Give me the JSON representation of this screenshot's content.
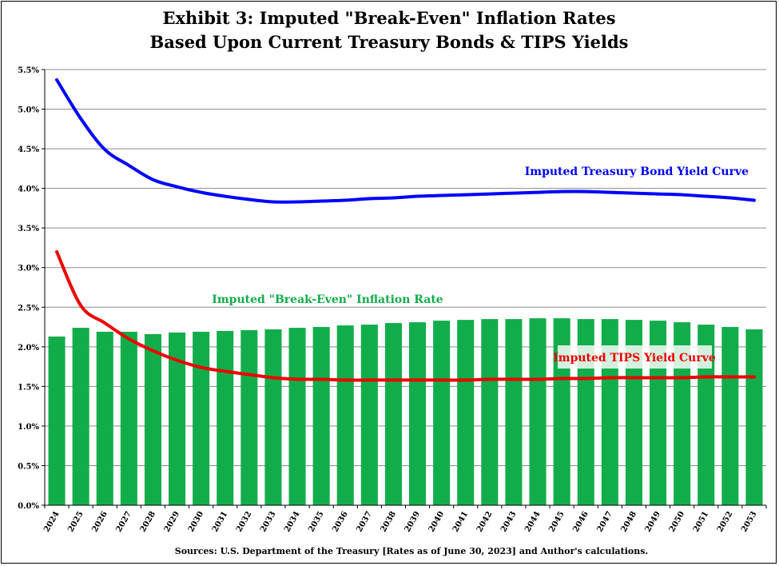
{
  "chart_data": {
    "type": "bar",
    "title_line1": "Exhibit 3: Imputed \"Break-Even\" Inflation Rates",
    "title_line2": "Based Upon Current Treasury Bonds & TIPS Yields",
    "source": "Sources: U.S. Department of the Treasury [Rates as of June 30, 2023] and Author's calculations.",
    "categories": [
      "2024",
      "2025",
      "2026",
      "2027",
      "2028",
      "2029",
      "2030",
      "2031",
      "2032",
      "2033",
      "2034",
      "2035",
      "2036",
      "2037",
      "2038",
      "2039",
      "2040",
      "2041",
      "2042",
      "2043",
      "2044",
      "2045",
      "2046",
      "2047",
      "2048",
      "2049",
      "2050",
      "2051",
      "2052",
      "2053"
    ],
    "ylim": [
      0,
      5.5
    ],
    "yticks": [
      "0.0%",
      "0.5%",
      "1.0%",
      "1.5%",
      "2.0%",
      "2.5%",
      "3.0%",
      "3.5%",
      "4.0%",
      "4.5%",
      "5.0%",
      "5.5%"
    ],
    "grid": true,
    "series": [
      {
        "name": "Imputed \"Break-Even\" Inflation Rate",
        "kind": "bar",
        "color": "#12AD4B",
        "values": [
          2.13,
          2.24,
          2.19,
          2.19,
          2.16,
          2.18,
          2.19,
          2.2,
          2.21,
          2.22,
          2.24,
          2.25,
          2.27,
          2.28,
          2.3,
          2.31,
          2.33,
          2.34,
          2.35,
          2.35,
          2.36,
          2.36,
          2.35,
          2.35,
          2.34,
          2.33,
          2.31,
          2.28,
          2.25,
          2.22
        ]
      },
      {
        "name": "Imputed Treasury Bond Yield Curve",
        "kind": "line",
        "color": "#0000FF",
        "values": [
          5.37,
          4.88,
          4.49,
          4.29,
          4.11,
          4.02,
          3.95,
          3.9,
          3.86,
          3.83,
          3.83,
          3.84,
          3.85,
          3.87,
          3.88,
          3.9,
          3.91,
          3.92,
          3.93,
          3.94,
          3.95,
          3.96,
          3.96,
          3.95,
          3.94,
          3.93,
          3.92,
          3.9,
          3.88,
          3.85
        ]
      },
      {
        "name": "Imputed TIPS Yield Curve",
        "kind": "line",
        "color": "#EE0000",
        "values": [
          3.2,
          2.52,
          2.3,
          2.1,
          1.95,
          1.83,
          1.74,
          1.69,
          1.65,
          1.61,
          1.59,
          1.59,
          1.58,
          1.58,
          1.58,
          1.58,
          1.58,
          1.58,
          1.59,
          1.59,
          1.59,
          1.6,
          1.6,
          1.61,
          1.61,
          1.61,
          1.61,
          1.62,
          1.62,
          1.62
        ]
      }
    ]
  }
}
